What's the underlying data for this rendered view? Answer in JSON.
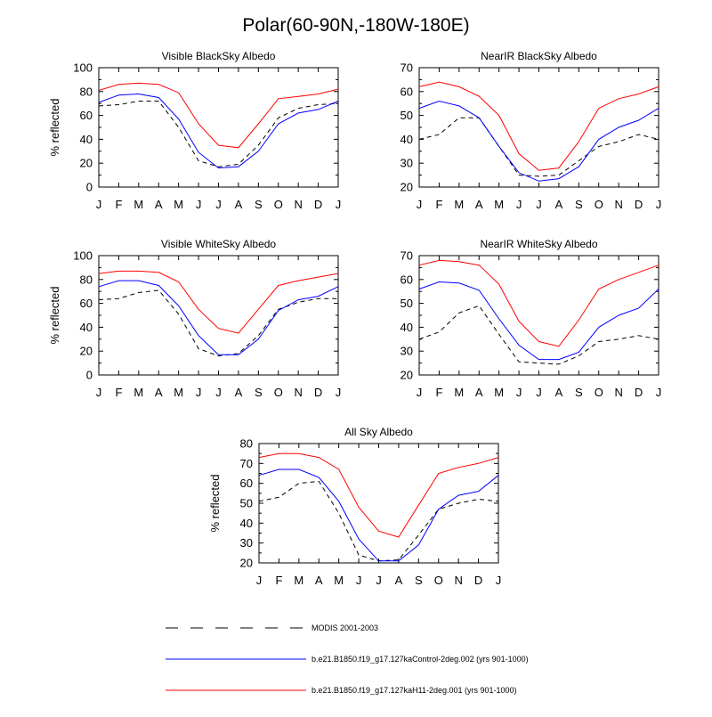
{
  "figure": {
    "title": "Polar(60-90N,-180W-180E)"
  },
  "legend": {
    "entries": [
      {
        "label": "MODIS 2001-2003",
        "color": "#000000",
        "style": "dashed"
      },
      {
        "label": "b.e21.B1850.f19_g17.127kaControl-2deg.002 (yrs 901-1000)",
        "color": "#0000ff",
        "style": "solid"
      },
      {
        "label": "b.e21.B1850.f19_g17.127kaH11-2deg.001 (yrs 901-1000)",
        "color": "#ff0000",
        "style": "solid"
      }
    ]
  },
  "chart_data": [
    {
      "type": "line",
      "title": "Visible BlackSky Albedo",
      "ylabel": "% reflected",
      "xlabel": "",
      "x": [
        "J",
        "F",
        "M",
        "A",
        "M",
        "J",
        "J",
        "A",
        "S",
        "O",
        "N",
        "D",
        "J"
      ],
      "ylim": [
        0,
        100
      ],
      "yticks": [
        0,
        20,
        40,
        60,
        80,
        100
      ],
      "grid": false,
      "series": [
        {
          "name": "MODIS 2001-2003",
          "color": "#000000",
          "dash": true,
          "values": [
            68,
            69,
            72,
            72,
            50,
            22,
            17,
            19,
            35,
            58,
            66,
            69,
            70
          ]
        },
        {
          "name": "b.e21.B1850.f19_g17.127kaControl-2deg.002 (yrs 901-1000)",
          "color": "#0000ff",
          "dash": false,
          "values": [
            71,
            77,
            78,
            75,
            57,
            29,
            16,
            17,
            30,
            53,
            62,
            65,
            72
          ]
        },
        {
          "name": "b.e21.B1850.f19_g17.127kaH11-2deg.001 (yrs 901-1000)",
          "color": "#ff0000",
          "dash": false,
          "values": [
            81,
            86,
            87,
            86,
            79,
            53,
            35,
            33,
            53,
            74,
            76,
            78,
            82
          ]
        }
      ]
    },
    {
      "type": "line",
      "title": "NearIR BlackSky Albedo",
      "ylabel": "",
      "xlabel": "",
      "x": [
        "J",
        "F",
        "M",
        "A",
        "M",
        "J",
        "J",
        "A",
        "S",
        "O",
        "N",
        "D",
        "J"
      ],
      "ylim": [
        20,
        70
      ],
      "yticks": [
        20,
        30,
        40,
        50,
        60,
        70
      ],
      "grid": false,
      "series": [
        {
          "name": "MODIS 2001-2003",
          "color": "#000000",
          "dash": true,
          "values": [
            40,
            42,
            49,
            49,
            37,
            25,
            24.5,
            25,
            31,
            37,
            39,
            42,
            40
          ]
        },
        {
          "name": "b.e21.B1850.f19_g17.127kaControl-2deg.002 (yrs 901-1000)",
          "color": "#0000ff",
          "dash": false,
          "values": [
            53,
            56,
            54,
            49,
            37,
            26,
            22.5,
            23.5,
            28.5,
            40,
            45,
            48,
            53
          ]
        },
        {
          "name": "b.e21.B1850.f19_g17.127kaH11-2deg.001 (yrs 901-1000)",
          "color": "#ff0000",
          "dash": false,
          "values": [
            62,
            64,
            62,
            58,
            50,
            34,
            27,
            28,
            39,
            53,
            57,
            59,
            62
          ]
        }
      ]
    },
    {
      "type": "line",
      "title": "Visible WhiteSky Albedo",
      "ylabel": "% reflected",
      "xlabel": "",
      "x": [
        "J",
        "F",
        "M",
        "A",
        "M",
        "J",
        "J",
        "A",
        "S",
        "O",
        "N",
        "D",
        "J"
      ],
      "ylim": [
        0,
        100
      ],
      "yticks": [
        0,
        20,
        40,
        60,
        80,
        100
      ],
      "grid": false,
      "series": [
        {
          "name": "MODIS 2001-2003",
          "color": "#000000",
          "dash": true,
          "values": [
            63,
            64,
            69,
            71,
            51,
            22,
            16,
            18,
            33,
            55,
            61,
            64,
            64
          ]
        },
        {
          "name": "b.e21.B1850.f19_g17.127kaControl-2deg.002 (yrs 901-1000)",
          "color": "#0000ff",
          "dash": false,
          "values": [
            74,
            79,
            79,
            75,
            58,
            33,
            17,
            17,
            30,
            54,
            63,
            66,
            74
          ]
        },
        {
          "name": "b.e21.B1850.f19_g17.127kaH11-2deg.001 (yrs 901-1000)",
          "color": "#ff0000",
          "dash": false,
          "values": [
            85,
            87,
            87,
            86,
            78,
            55,
            39,
            35,
            55,
            75,
            79,
            82,
            85
          ]
        }
      ]
    },
    {
      "type": "line",
      "title": "NearIR WhiteSky Albedo",
      "ylabel": "",
      "xlabel": "",
      "x": [
        "J",
        "F",
        "M",
        "A",
        "M",
        "J",
        "J",
        "A",
        "S",
        "O",
        "N",
        "D",
        "J"
      ],
      "ylim": [
        20,
        70
      ],
      "yticks": [
        20,
        30,
        40,
        50,
        60,
        70
      ],
      "grid": false,
      "series": [
        {
          "name": "MODIS 2001-2003",
          "color": "#000000",
          "dash": true,
          "values": [
            35,
            38,
            46,
            49,
            37,
            25.5,
            25,
            24.5,
            28,
            34,
            35,
            36.5,
            35
          ]
        },
        {
          "name": "b.e21.B1850.f19_g17.127kaControl-2deg.002 (yrs 901-1000)",
          "color": "#0000ff",
          "dash": false,
          "values": [
            56,
            59,
            58.5,
            55.5,
            43.5,
            32.5,
            26.5,
            26.5,
            29.5,
            40,
            45,
            48,
            56
          ]
        },
        {
          "name": "b.e21.B1850.f19_g17.127kaH11-2deg.001 (yrs 901-1000)",
          "color": "#ff0000",
          "dash": false,
          "values": [
            66,
            68,
            67.5,
            66,
            58,
            42.5,
            34,
            32,
            43,
            56,
            60,
            63,
            66
          ]
        }
      ]
    },
    {
      "type": "line",
      "title": "All Sky Albedo",
      "ylabel": "% reflected",
      "xlabel": "",
      "x": [
        "J",
        "F",
        "M",
        "A",
        "M",
        "J",
        "J",
        "A",
        "S",
        "O",
        "N",
        "D",
        "J"
      ],
      "ylim": [
        20,
        80
      ],
      "yticks": [
        20,
        30,
        40,
        50,
        60,
        70,
        80
      ],
      "grid": false,
      "series": [
        {
          "name": "MODIS 2001-2003",
          "color": "#000000",
          "dash": true,
          "values": [
            51,
            53,
            60,
            61,
            45,
            24,
            21,
            21.5,
            34,
            47,
            50,
            52,
            51
          ]
        },
        {
          "name": "b.e21.B1850.f19_g17.127kaControl-2deg.002 (yrs 901-1000)",
          "color": "#0000ff",
          "dash": false,
          "values": [
            64,
            67,
            67,
            63,
            51,
            32,
            21,
            21,
            29,
            47,
            54,
            56,
            64
          ]
        },
        {
          "name": "b.e21.B1850.f19_g17.127kaH11-2deg.001 (yrs 901-1000)",
          "color": "#ff0000",
          "dash": false,
          "values": [
            73,
            75,
            75,
            73,
            67,
            48,
            36,
            33,
            49,
            65,
            68,
            70,
            73
          ]
        }
      ]
    }
  ]
}
